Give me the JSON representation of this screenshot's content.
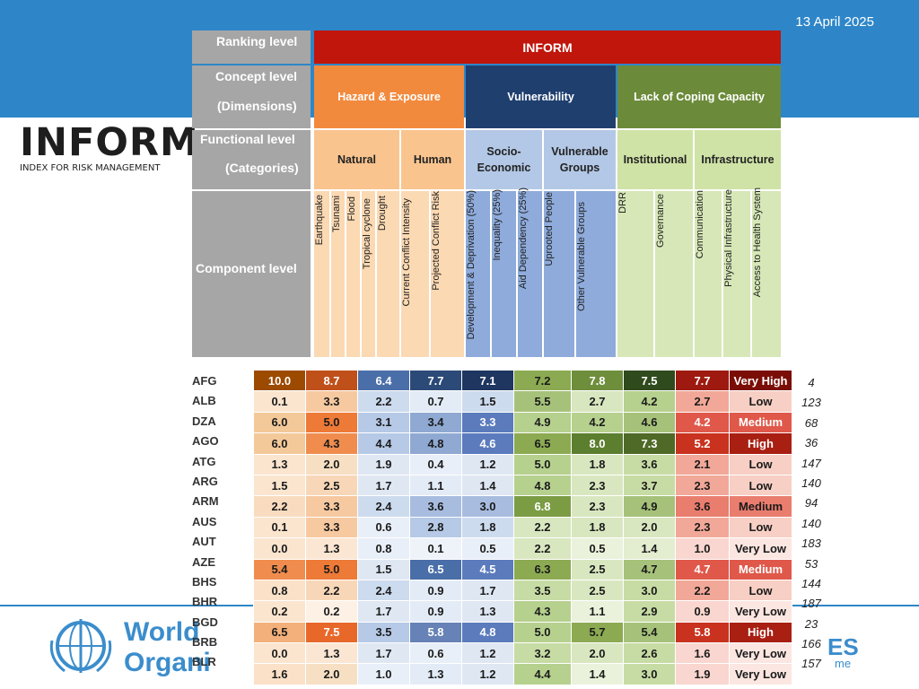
{
  "date": "13 April 2025",
  "logo": {
    "word": "INFORM",
    "subtitle": "INDEX FOR RISK MANAGEMENT"
  },
  "who": {
    "name_line1": "World",
    "name_line2": "Organi"
  },
  "partner": {
    "text": "ES",
    "sub": "me"
  },
  "framework": {
    "levels": {
      "ranking": "Ranking level",
      "concept": "Concept level",
      "concept_sub": "(Dimensions)",
      "functional": "Functional level",
      "functional_sub": "(Categories)",
      "component": "Component level"
    },
    "inform": "INFORM",
    "dimensions": [
      "Hazard & Exposure",
      "Vulnerability",
      "Lack of Coping Capacity"
    ],
    "categories": {
      "natural": "Natural",
      "human": "Human",
      "socio_line1": "Socio-",
      "socio_line2": "Economic",
      "vg_line1": "Vulnerable",
      "vg_line2": "Groups",
      "institutional": "Institutional",
      "infrastructure": "Infrastructure"
    },
    "components": [
      "Earthquake",
      "Tsunami",
      "Flood",
      "Tropical cyclone",
      "Drought",
      "Current Conflict Intensity",
      "Projected Conflict Risk",
      "Development & Deprivation (50%)",
      "Inequality (25%)",
      "Aid Dependency (25%)",
      "Uprooted People",
      "Other Vulnerable Groups",
      "DRR",
      "Governance",
      "Communication",
      "Physical Infrastructure",
      "Access to Health System"
    ],
    "colors": {
      "level": "#a6a6a6",
      "inform": "#c0160b",
      "hazard": "#f28a3e",
      "hazard_light": "#f9c48e",
      "hazard_comp": "#fbd9b3",
      "vuln": "#1f3f6f",
      "vuln_mid": "#b3c8e6",
      "vuln_comp": "#8eabdb",
      "coping": "#6c8b3a",
      "coping_mid": "#cfe3a6",
      "coping_comp": "#d7e7b7"
    }
  },
  "table": {
    "countries": [
      "AFG",
      "ALB",
      "DZA",
      "AGO",
      "ATG",
      "ARG",
      "ARM",
      "AUS",
      "AUT",
      "AZE",
      "BHS",
      "BHR",
      "BGD",
      "BRB",
      "BLR"
    ],
    "rows": [
      [
        "10.0",
        "8.7",
        "6.4",
        "7.7",
        "7.1",
        "7.2",
        "7.8",
        "7.5",
        "7.7",
        "Very High"
      ],
      [
        "0.1",
        "3.3",
        "2.2",
        "0.7",
        "1.5",
        "5.5",
        "2.7",
        "4.2",
        "2.7",
        "Low"
      ],
      [
        "6.0",
        "5.0",
        "3.1",
        "3.4",
        "3.3",
        "4.9",
        "4.2",
        "4.6",
        "4.2",
        "Medium"
      ],
      [
        "6.0",
        "4.3",
        "4.4",
        "4.8",
        "4.6",
        "6.5",
        "8.0",
        "7.3",
        "5.2",
        "High"
      ],
      [
        "1.3",
        "2.0",
        "1.9",
        "0.4",
        "1.2",
        "5.0",
        "1.8",
        "3.6",
        "2.1",
        "Low"
      ],
      [
        "1.5",
        "2.5",
        "1.7",
        "1.1",
        "1.4",
        "4.8",
        "2.3",
        "3.7",
        "2.3",
        "Low"
      ],
      [
        "2.2",
        "3.3",
        "2.4",
        "3.6",
        "3.0",
        "6.8",
        "2.3",
        "4.9",
        "3.6",
        "Medium"
      ],
      [
        "0.1",
        "3.3",
        "0.6",
        "2.8",
        "1.8",
        "2.2",
        "1.8",
        "2.0",
        "2.3",
        "Low"
      ],
      [
        "0.0",
        "1.3",
        "0.8",
        "0.1",
        "0.5",
        "2.2",
        "0.5",
        "1.4",
        "1.0",
        "Very Low"
      ],
      [
        "5.4",
        "5.0",
        "1.5",
        "6.5",
        "4.5",
        "6.3",
        "2.5",
        "4.7",
        "4.7",
        "Medium"
      ],
      [
        "0.8",
        "2.2",
        "2.4",
        "0.9",
        "1.7",
        "3.5",
        "2.5",
        "3.0",
        "2.2",
        "Low"
      ],
      [
        "0.2",
        "0.2",
        "1.7",
        "0.9",
        "1.3",
        "4.3",
        "1.1",
        "2.9",
        "0.9",
        "Very Low"
      ],
      [
        "6.5",
        "7.5",
        "3.5",
        "5.8",
        "4.8",
        "5.0",
        "5.7",
        "5.4",
        "5.8",
        "High"
      ],
      [
        "0.0",
        "1.3",
        "1.7",
        "0.6",
        "1.2",
        "3.2",
        "2.0",
        "2.6",
        "1.6",
        "Very Low"
      ],
      [
        "1.6",
        "2.0",
        "1.0",
        "1.3",
        "1.2",
        "4.4",
        "1.4",
        "3.0",
        "1.9",
        "Very Low"
      ]
    ],
    "ranks": [
      "4",
      "123",
      "68",
      "36",
      "147",
      "140",
      "94",
      "140",
      "183",
      "53",
      "144",
      "187",
      "23",
      "166",
      "157"
    ],
    "cell_colors": [
      [
        "#9c4a00",
        "#c0501a",
        "#4a6ea8",
        "#2b4a78",
        "#1e3660",
        "#8caa52",
        "#6e8e3c",
        "#2f4a1c",
        "#9e1a10",
        "#7a0e06"
      ],
      [
        "#fbe5cf",
        "#f7c9a0",
        "#cddbee",
        "#e3ebf6",
        "#cddbee",
        "#a6c27a",
        "#d9e7c0",
        "#b6d08e",
        "#f2a898",
        "#f7cfc4"
      ],
      [
        "#f4c99a",
        "#ee7a38",
        "#b6c9e6",
        "#8fa9d3",
        "#5b7bbd",
        "#b6d08e",
        "#b6d08e",
        "#a6c27a",
        "#e0584a",
        "#e0584a"
      ],
      [
        "#f4c99a",
        "#f08d4e",
        "#b6c9e6",
        "#8fa9d3",
        "#5b7bbd",
        "#8caa52",
        "#5c7e2f",
        "#4e6a26",
        "#c8321e",
        "#a91f12"
      ],
      [
        "#fbe5cf",
        "#f7dfc3",
        "#dfe7f3",
        "#e9eff8",
        "#dfe7f3",
        "#b6d08e",
        "#d9e7c0",
        "#c7dca4",
        "#f2a898",
        "#f7cfc4"
      ],
      [
        "#fbe5cf",
        "#f7d7b8",
        "#dfe7f3",
        "#e3ebf6",
        "#dfe7f3",
        "#b6d08e",
        "#d9e7c0",
        "#c7dca4",
        "#f2a898",
        "#f7cfc4"
      ],
      [
        "#f9dcbf",
        "#f7c9a0",
        "#cddbee",
        "#a8bcdf",
        "#a8bcdf",
        "#7c9c44",
        "#d9e7c0",
        "#a6c27a",
        "#e97d6e",
        "#e97d6e"
      ],
      [
        "#fbe5cf",
        "#f7c9a0",
        "#e9eff8",
        "#b6c9e6",
        "#cddbee",
        "#d9e7c0",
        "#d9e7c0",
        "#d9e7c0",
        "#f2a898",
        "#f7cfc4"
      ],
      [
        "#fbe5cf",
        "#fae6d2",
        "#e9eff8",
        "#eef3f9",
        "#e9eff8",
        "#d9e7c0",
        "#eaf2dc",
        "#e3edd0",
        "#f9d6cf",
        "#fbe6e1"
      ],
      [
        "#f08d4e",
        "#ee7a38",
        "#dfe7f3",
        "#4a6ea8",
        "#5b7bbd",
        "#8caa52",
        "#d9e7c0",
        "#a6c27a",
        "#e0584a",
        "#e0584a"
      ],
      [
        "#fae1c8",
        "#f7d7b8",
        "#cddbee",
        "#e3ebf6",
        "#dfe7f3",
        "#c7dca4",
        "#d9e7c0",
        "#c7dca4",
        "#f2a898",
        "#f7cfc4"
      ],
      [
        "#fbe5cf",
        "#fdf1e5",
        "#dfe7f3",
        "#e3ebf6",
        "#dfe7f3",
        "#b6d08e",
        "#eaf2dc",
        "#c7dca4",
        "#f9d6cf",
        "#fbe6e1"
      ],
      [
        "#f4b07a",
        "#e8682a",
        "#b6c9e6",
        "#6682b6",
        "#5b7bbd",
        "#b6d08e",
        "#8caa52",
        "#a6c27a",
        "#c8321e",
        "#a91f12"
      ],
      [
        "#fbe5cf",
        "#fae6d2",
        "#dfe7f3",
        "#e9eff8",
        "#dfe7f3",
        "#c7dca4",
        "#d9e7c0",
        "#c7dca4",
        "#f9d6cf",
        "#fbe6e1"
      ],
      [
        "#fae1c8",
        "#f7dfc3",
        "#e9eff8",
        "#e3ebf6",
        "#dfe7f3",
        "#b6d08e",
        "#eaf2dc",
        "#c7dca4",
        "#f9d6cf",
        "#fbe6e1"
      ]
    ]
  }
}
